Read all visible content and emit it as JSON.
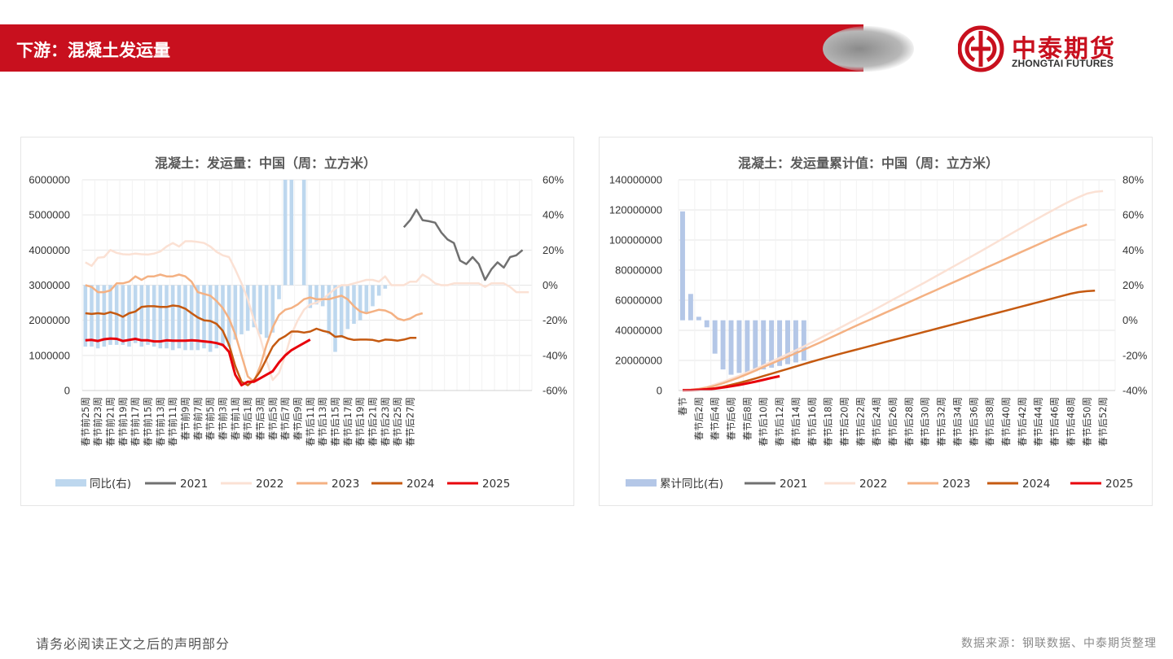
{
  "header": {
    "title": "下游：混凝土发运量"
  },
  "logo": {
    "cn": "中泰期货",
    "en": "ZHONGTAI FUTURES",
    "color": "#c8101e"
  },
  "footer": {
    "left": "请务必阅读正文之后的声明部分",
    "right": "数据来源：钢联数据、中泰期货整理"
  },
  "chart_data": [
    {
      "type": "bar+line",
      "title": "混凝土：发运量：中国（周：立方米）",
      "ylim": [
        0,
        6000000
      ],
      "y_ticks": [
        "6000000",
        "5000000",
        "4000000",
        "3000000",
        "2000000",
        "1000000",
        "0"
      ],
      "y2lim": [
        -60,
        60
      ],
      "y2_ticks": [
        "60%",
        "40%",
        "20%",
        "0%",
        "-20%",
        "-40%",
        "-60%"
      ],
      "x_tick_labels": [
        "春节前25周",
        "春节前23周",
        "春节前21周",
        "春节前19周",
        "春节前17周",
        "春节前15周",
        "春节前13周",
        "春节前11周",
        "春节前9周",
        "春节前7周",
        "春节前5周",
        "春节前3周",
        "春节前1周",
        "春节后1周",
        "春节后3周",
        "春节后5周",
        "春节后7周",
        "春节后9周",
        "春节后11周",
        "春节后13周",
        "春节后15周",
        "春节后17周",
        "春节后19周",
        "春节后21周",
        "春节后23周",
        "春节后25周",
        "春节后27周"
      ],
      "legend": [
        "同比(右)",
        "2021",
        "2022",
        "2023",
        "2024",
        "2025"
      ],
      "colors": {
        "同比(右)": "#bdd7ee",
        "2021": "#707070",
        "2022": "#fbe1d4",
        "2023": "#f4b183",
        "2024": "#c55a11",
        "2025": "#e8000b"
      },
      "series": [
        {
          "name": "同比(右)",
          "axis": "right",
          "kind": "bar",
          "values": [
            -35,
            -35,
            -36,
            -35,
            -34,
            -34,
            -34,
            -35,
            -33,
            -35,
            -34,
            -35,
            -36,
            -36,
            -37,
            -36,
            -37,
            -37,
            -37,
            -36,
            -38,
            -36,
            -35,
            -35,
            -31,
            -28,
            -26,
            -24,
            -28,
            -30,
            -27,
            -8,
            60,
            60,
            0,
            60,
            -13,
            -11,
            -12,
            -28,
            -38,
            -30,
            -25,
            -22,
            -20,
            -16,
            -12,
            -6,
            -2,
            0,
            0,
            0
          ],
          "start": 0
        },
        {
          "name": "2021",
          "axis": "left",
          "kind": "line",
          "start": 51,
          "values": [
            4650000,
            4850000,
            5150000,
            4850000,
            4820000,
            4780000,
            4500000,
            4300000,
            4200000,
            3700000,
            3600000,
            3800000,
            3600000,
            3150000,
            3450000,
            3650000,
            3500000,
            3800000,
            3850000,
            4000000
          ]
        },
        {
          "name": "2022",
          "axis": "left",
          "kind": "line",
          "start": 0,
          "values": [
            3650000,
            3550000,
            3780000,
            3800000,
            4000000,
            3920000,
            3880000,
            3870000,
            3900000,
            3880000,
            3870000,
            3900000,
            3960000,
            4100000,
            4200000,
            4100000,
            4250000,
            4250000,
            4230000,
            4200000,
            4100000,
            3950000,
            3850000,
            3800000,
            3450000,
            3050000,
            2600000,
            2000000,
            1500000,
            850000,
            300000,
            500000,
            1000000,
            1600000,
            2000000,
            2300000,
            2450000,
            2500000,
            2600000,
            2750000,
            2900000,
            3000000,
            3000000,
            3050000,
            3100000,
            3150000,
            3150000,
            3100000,
            3250000,
            3000000,
            3000000,
            3000000,
            3100000,
            3100000,
            3300000,
            3200000,
            3050000,
            3000000,
            3000000,
            3050000,
            3050000,
            3050000,
            3050000,
            3050000,
            2950000,
            3050000,
            3050000,
            3050000,
            2950000,
            2800000,
            2800000,
            2800000
          ]
        },
        {
          "name": "2023",
          "axis": "left",
          "kind": "line",
          "start": 0,
          "values": [
            3000000,
            2950000,
            2800000,
            2800000,
            2850000,
            3050000,
            3050000,
            3100000,
            3250000,
            3150000,
            3250000,
            3250000,
            3300000,
            3250000,
            3250000,
            3300000,
            3250000,
            3100000,
            2800000,
            2750000,
            2700000,
            2550000,
            2350000,
            2050000,
            1600000,
            1000000,
            400000,
            250000,
            700000,
            1300000,
            1800000,
            2150000,
            2300000,
            2350000,
            2450000,
            2600000,
            2650000,
            2600000,
            2600000,
            2600000,
            2650000,
            2700000,
            2600000,
            2400000,
            2250000,
            2200000,
            2250000,
            2300000,
            2280000,
            2200000,
            2050000,
            2000000,
            2050000,
            2150000,
            2200000
          ]
        },
        {
          "name": "2024",
          "axis": "left",
          "kind": "line",
          "start": 0,
          "values": [
            2200000,
            2180000,
            2200000,
            2180000,
            2230000,
            2180000,
            2100000,
            2200000,
            2250000,
            2380000,
            2400000,
            2400000,
            2380000,
            2380000,
            2420000,
            2400000,
            2330000,
            2200000,
            2080000,
            2000000,
            1980000,
            1900000,
            1700000,
            1300000,
            700000,
            250000,
            150000,
            300000,
            550000,
            900000,
            1250000,
            1450000,
            1550000,
            1680000,
            1680000,
            1650000,
            1680000,
            1760000,
            1700000,
            1660000,
            1530000,
            1550000,
            1480000,
            1440000,
            1450000,
            1450000,
            1440000,
            1400000,
            1450000,
            1440000,
            1420000,
            1450000,
            1500000,
            1500000
          ]
        },
        {
          "name": "2025",
          "axis": "left",
          "kind": "line",
          "start": 0,
          "values": [
            1430000,
            1440000,
            1410000,
            1460000,
            1480000,
            1470000,
            1410000,
            1440000,
            1470000,
            1430000,
            1430000,
            1400000,
            1400000,
            1430000,
            1420000,
            1420000,
            1420000,
            1430000,
            1420000,
            1400000,
            1380000,
            1350000,
            1300000,
            1100000,
            450000,
            150000,
            250000,
            250000,
            350000,
            450000,
            550000,
            800000,
            1000000,
            1150000,
            1250000,
            1350000,
            1450000
          ]
        }
      ]
    },
    {
      "type": "bar+line",
      "title": "混凝土：发运量累计值：中国（周：立方米）",
      "ylim": [
        0,
        140000000
      ],
      "y_ticks": [
        "140000000",
        "120000000",
        "100000000",
        "80000000",
        "60000000",
        "40000000",
        "20000000",
        "0"
      ],
      "y2lim": [
        -40,
        80
      ],
      "y2_ticks": [
        "80%",
        "60%",
        "40%",
        "20%",
        "0%",
        "-20%",
        "-40%"
      ],
      "x_tick_labels": [
        "春节",
        "春节后2周",
        "春节后4周",
        "春节后6周",
        "春节后8周",
        "春节后10周",
        "春节后12周",
        "春节后14周",
        "春节后16周",
        "春节后18周",
        "春节后20周",
        "春节后22周",
        "春节后24周",
        "春节后26周",
        "春节后28周",
        "春节后30周",
        "春节后32周",
        "春节后34周",
        "春节后36周",
        "春节后38周",
        "春节后40周",
        "春节后42周",
        "春节后44周",
        "春节后46周",
        "春节后48周",
        "春节后50周",
        "春节后52周"
      ],
      "legend": [
        "累计同比(右)",
        "2021",
        "2022",
        "2023",
        "2024",
        "2025"
      ],
      "colors": {
        "累计同比(右)": "#b4c7e7",
        "2021": "#707070",
        "2022": "#fbe1d4",
        "2023": "#f4b183",
        "2024": "#c55a11",
        "2025": "#e8000b"
      },
      "series": [
        {
          "name": "累计同比(右)",
          "axis": "right",
          "kind": "bar",
          "start": 0,
          "values": [
            62,
            15,
            2,
            -4,
            -19,
            -28,
            -31,
            -30,
            -30,
            -29,
            -28,
            -27,
            -26,
            -25,
            -24,
            -23
          ]
        },
        {
          "name": "2021",
          "axis": "left",
          "kind": "line",
          "start": 0,
          "values": []
        },
        {
          "name": "2022",
          "axis": "left",
          "kind": "line",
          "start": 0,
          "values": [
            300000,
            600000,
            1200000,
            2300000,
            4000000,
            5800000,
            7800000,
            9800000,
            12000000,
            14300000,
            16700000,
            19200000,
            21700000,
            24200000,
            26700000,
            29300000,
            32000000,
            34800000,
            37600000,
            40400000,
            43200000,
            46000000,
            48800000,
            51600000,
            54500000,
            57400000,
            60300000,
            63200000,
            66100000,
            69000000,
            71900000,
            74900000,
            77900000,
            80900000,
            83900000,
            86900000,
            89900000,
            92900000,
            96000000,
            99100000,
            102200000,
            105300000,
            108400000,
            111500000,
            114500000,
            117500000,
            120400000,
            123300000,
            126000000,
            128500000,
            130800000,
            132000000,
            132500000
          ]
        },
        {
          "name": "2023",
          "axis": "left",
          "kind": "line",
          "start": 0,
          "values": [
            250000,
            500000,
            1000000,
            1900000,
            3200000,
            4800000,
            6700000,
            8700000,
            10900000,
            13200000,
            15600000,
            17900000,
            20200000,
            22500000,
            24800000,
            27100000,
            29500000,
            31900000,
            34400000,
            36900000,
            39400000,
            41900000,
            44300000,
            46700000,
            49100000,
            51500000,
            53900000,
            56300000,
            58700000,
            61100000,
            63500000,
            65900000,
            68300000,
            70700000,
            73100000,
            75500000,
            77900000,
            80300000,
            82700000,
            85100000,
            87500000,
            89900000,
            92300000,
            94700000,
            97100000,
            99500000,
            101900000,
            104200000,
            106400000,
            108500000,
            110300000
          ]
        },
        {
          "name": "2024",
          "axis": "left",
          "kind": "line",
          "start": 0,
          "values": [
            150000,
            300000,
            550000,
            900000,
            1500000,
            2500000,
            3800000,
            5100000,
            6500000,
            8000000,
            9600000,
            11200000,
            12800000,
            14400000,
            16000000,
            17600000,
            19200000,
            20700000,
            22200000,
            23700000,
            25100000,
            26500000,
            27900000,
            29300000,
            30700000,
            32100000,
            33500000,
            34900000,
            36300000,
            37700000,
            39100000,
            40500000,
            41900000,
            43300000,
            44700000,
            46100000,
            47500000,
            48900000,
            50300000,
            51700000,
            53100000,
            54500000,
            55900000,
            57300000,
            58700000,
            60100000,
            61500000,
            62900000,
            64300000,
            65400000,
            66000000,
            66300000
          ]
        },
        {
          "name": "2025",
          "axis": "left",
          "kind": "line",
          "start": 0,
          "values": [
            200000,
            250000,
            500000,
            800000,
            1300000,
            2000000,
            2800000,
            3700000,
            4800000,
            5900000,
            7100000,
            8400000,
            9500000
          ]
        }
      ]
    }
  ]
}
